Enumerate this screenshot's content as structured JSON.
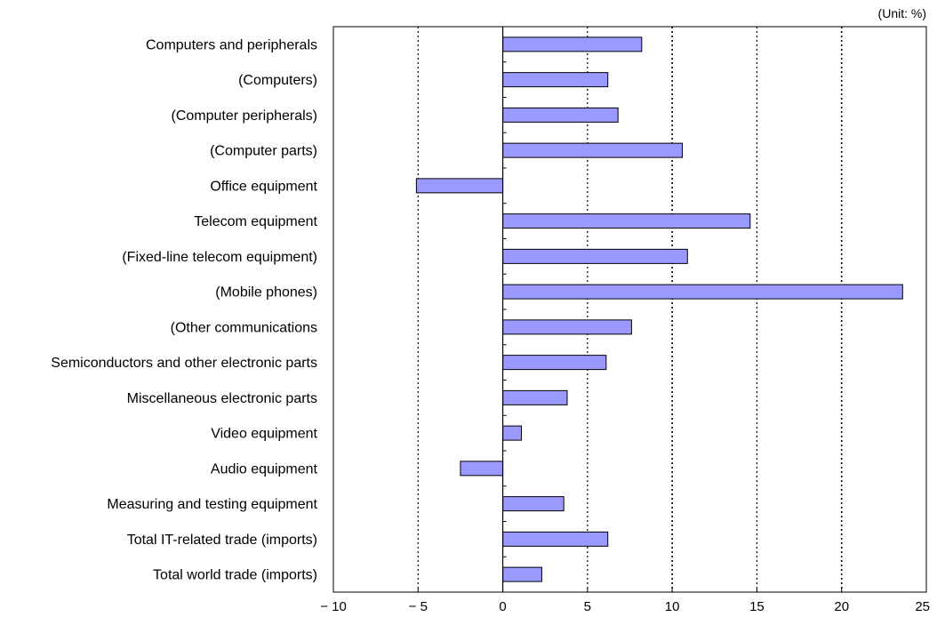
{
  "chart_data": {
    "type": "bar",
    "orientation": "horizontal",
    "unit_label": "(Unit: %)",
    "title": "",
    "xlabel": "",
    "ylabel": "",
    "xlim": [
      -10,
      25
    ],
    "x_ticks": [
      -10,
      -5,
      0,
      5,
      10,
      15,
      20,
      25
    ],
    "x_tick_labels": [
      "− 10",
      "− 5",
      "0",
      "5",
      "10",
      "15",
      "20",
      "25"
    ],
    "grid": "vertical dotted lines at -5, 5, 10, 15, 20",
    "categories": [
      "Computers and peripherals",
      "(Computers)",
      "(Computer peripherals)",
      "(Computer parts)",
      "Office equipment",
      "Telecom equipment",
      "(Fixed-line telecom equipment)",
      "(Mobile phones)",
      "(Other communications",
      "Semiconductors and other electronic parts",
      "Miscellaneous electronic parts",
      "Video equipment",
      "Audio equipment",
      "Measuring and testing equipment",
      "Total IT-related trade (imports)",
      "Total world trade (imports)"
    ],
    "values": [
      8.2,
      6.2,
      6.8,
      10.6,
      -5.1,
      14.6,
      10.9,
      23.6,
      7.6,
      6.1,
      3.8,
      1.1,
      -2.5,
      3.6,
      6.2,
      2.3
    ],
    "colors": {
      "bar_fill": "#9999ff",
      "bar_stroke": "#000000",
      "axis": "#000000",
      "grid": "#000000"
    }
  }
}
